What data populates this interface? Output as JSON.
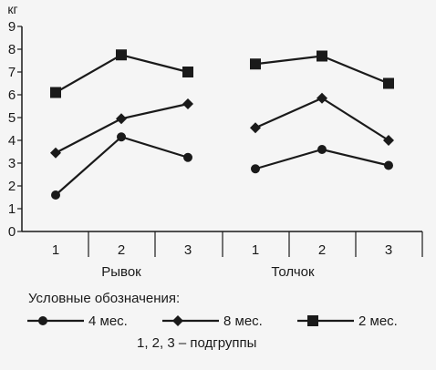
{
  "chart_data": {
    "type": "line",
    "title": "",
    "ylabel": "кг",
    "ylim": [
      0,
      9
    ],
    "yticks": [
      "0",
      "1",
      "2",
      "3",
      "4",
      "5",
      "6",
      "7",
      "8",
      "9"
    ],
    "groups": [
      {
        "label": "Рывок",
        "categories": [
          "1",
          "2",
          "3"
        ]
      },
      {
        "label": "Толчок",
        "categories": [
          "1",
          "2",
          "3"
        ]
      }
    ],
    "series": [
      {
        "name": "4 мес.",
        "marker": "circle",
        "color": "#1a1a1a",
        "values": {
          "Рывок": [
            1.6,
            4.15,
            3.25
          ],
          "Толчок": [
            2.75,
            3.6,
            2.9
          ]
        }
      },
      {
        "name": "8 мес.",
        "marker": "diamond",
        "color": "#1a1a1a",
        "values": {
          "Рывок": [
            3.45,
            4.95,
            5.6
          ],
          "Толчок": [
            4.55,
            5.85,
            4.0
          ]
        }
      },
      {
        "name": "2 мес.",
        "marker": "square",
        "color": "#1a1a1a",
        "values": {
          "Рывок": [
            6.1,
            7.75,
            7.0
          ],
          "Толчок": [
            7.35,
            7.7,
            6.5
          ]
        }
      }
    ],
    "legend": {
      "title": "Условные обозначения:",
      "note": "1, 2, 3 – подгруппы",
      "placement": "bottom"
    },
    "grid": false
  }
}
